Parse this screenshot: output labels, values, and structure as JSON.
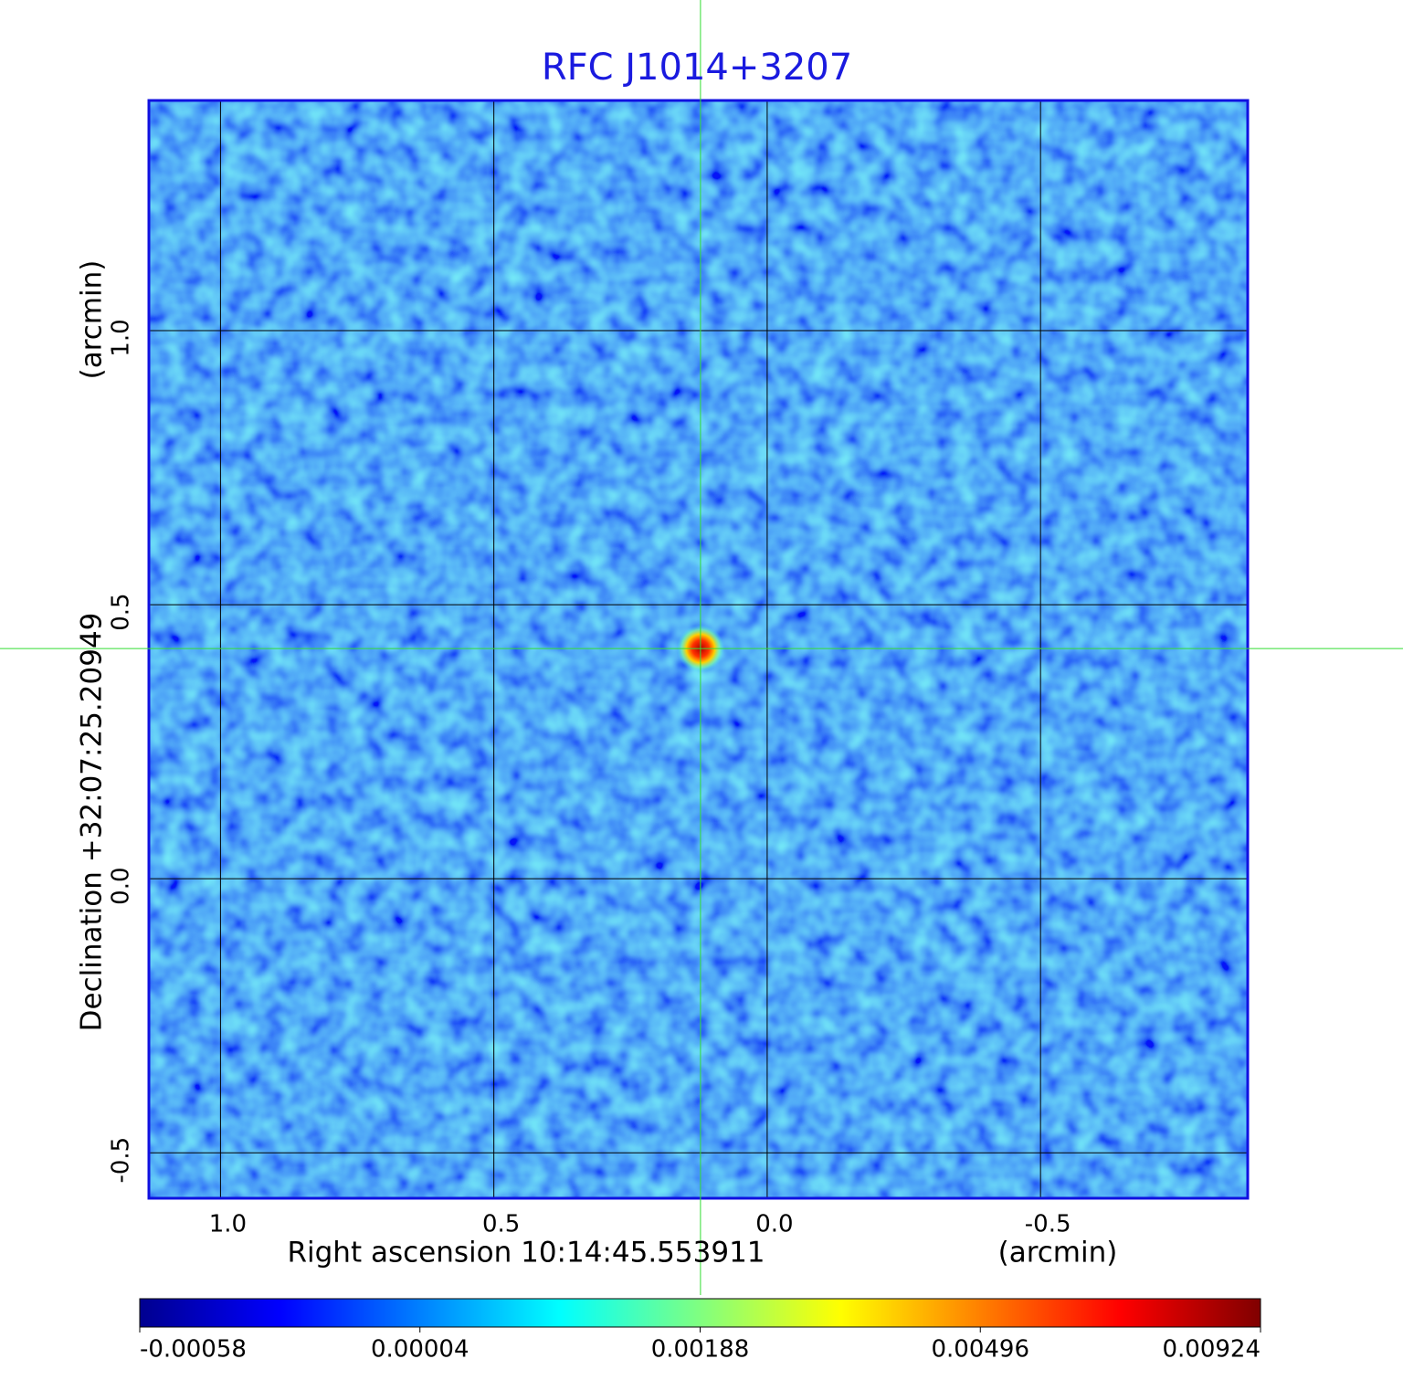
{
  "chart_data": {
    "type": "image",
    "title": "RFC J1014+3207",
    "xlabel": "Right ascension  10:14:45.553911",
    "xunit": "(arcmin)",
    "ylabel": "Declination  +32:07:25.20949",
    "yunit": "(arcmin)",
    "xlim": [
      1.131,
      -0.879
    ],
    "ylim": [
      -0.583,
      1.42
    ],
    "xticks": [
      {
        "value": 1.0,
        "label": "1.0"
      },
      {
        "value": 0.5,
        "label": "0.5"
      },
      {
        "value": 0.0,
        "label": "0.0"
      },
      -0.5
    ],
    "yticks": [
      {
        "value": 1.0,
        "label": "1.0"
      },
      {
        "value": 0.5,
        "label": "0.5"
      },
      {
        "value": 0.0,
        "label": "0.0"
      },
      -0.5
    ],
    "grid": true,
    "marker": {
      "x": 0.122,
      "y": 0.42,
      "color": "#33dd33"
    },
    "colorbar": {
      "ticks": [
        -0.00058,
        4e-05,
        0.00188,
        0.00496,
        0.00924
      ],
      "colormap": [
        "#00008f",
        "#0000ff",
        "#0080ff",
        "#00ffff",
        "#80ff80",
        "#ffff00",
        "#ff8000",
        "#ff0000",
        "#800000"
      ]
    }
  }
}
